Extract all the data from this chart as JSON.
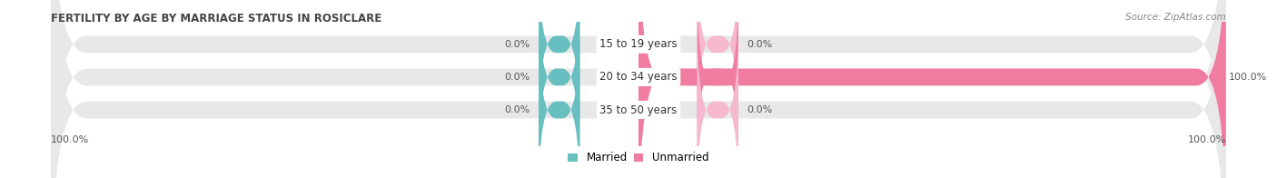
{
  "title": "FERTILITY BY AGE BY MARRIAGE STATUS IN ROSICLARE",
  "source": "Source: ZipAtlas.com",
  "categories": [
    "15 to 19 years",
    "20 to 34 years",
    "35 to 50 years"
  ],
  "married_pct": [
    0.0,
    0.0,
    0.0
  ],
  "unmarried_pct": [
    0.0,
    100.0,
    0.0
  ],
  "married_color": "#67bfc0",
  "unmarried_color": "#f07ca0",
  "unmarried_color_light": "#f5b8ce",
  "bar_bg_color": "#e8e8e8",
  "title_color": "#444444",
  "source_color": "#888888",
  "legend_married": "Married",
  "legend_unmarried": "Unmarried",
  "left_axis_label": "100.0%",
  "right_axis_label": "100.0%",
  "figsize": [
    14.06,
    1.96
  ],
  "dpi": 100
}
